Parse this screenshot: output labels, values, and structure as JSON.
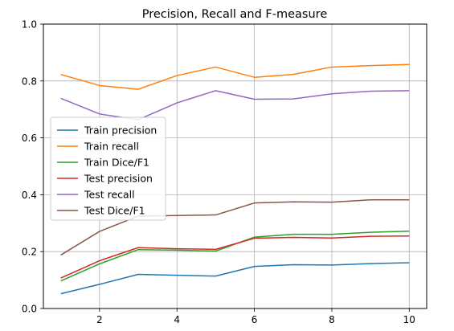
{
  "chart_data": {
    "type": "line",
    "title": "Precision, Recall and F-measure",
    "xlabel": "",
    "ylabel": "",
    "xlim": [
      0.55,
      10.45
    ],
    "ylim": [
      0.0,
      1.0
    ],
    "xticks": [
      2,
      4,
      6,
      8,
      10
    ],
    "yticks": [
      0.0,
      0.2,
      0.4,
      0.6,
      0.8,
      1.0
    ],
    "xtick_labels": [
      "2",
      "4",
      "6",
      "8",
      "10"
    ],
    "ytick_labels": [
      "0.0",
      "0.2",
      "0.4",
      "0.6",
      "0.8",
      "1.0"
    ],
    "grid": true,
    "legend_position": "center-left",
    "x": [
      1,
      2,
      3,
      4,
      5,
      6,
      7,
      8,
      9,
      10
    ],
    "series": [
      {
        "name": "Train precision",
        "color": "#1f77b4",
        "values": [
          0.052,
          0.085,
          0.12,
          0.117,
          0.114,
          0.148,
          0.154,
          0.153,
          0.158,
          0.161
        ]
      },
      {
        "name": "Train recall",
        "color": "#ff7f0e",
        "values": [
          0.823,
          0.784,
          0.771,
          0.819,
          0.849,
          0.813,
          0.823,
          0.849,
          0.854,
          0.858
        ]
      },
      {
        "name": "Train Dice/F1",
        "color": "#2ca02c",
        "values": [
          0.097,
          0.157,
          0.207,
          0.205,
          0.202,
          0.251,
          0.261,
          0.261,
          0.268,
          0.272
        ]
      },
      {
        "name": "Test precision",
        "color": "#d62728",
        "values": [
          0.107,
          0.168,
          0.214,
          0.21,
          0.208,
          0.247,
          0.25,
          0.248,
          0.254,
          0.255
        ]
      },
      {
        "name": "Test recall",
        "color": "#9467bd",
        "values": [
          0.739,
          0.684,
          0.664,
          0.723,
          0.766,
          0.736,
          0.737,
          0.755,
          0.764,
          0.766
        ]
      },
      {
        "name": "Test Dice/F1",
        "color": "#8c564b",
        "values": [
          0.188,
          0.271,
          0.325,
          0.327,
          0.329,
          0.371,
          0.375,
          0.374,
          0.382,
          0.382
        ]
      }
    ]
  }
}
